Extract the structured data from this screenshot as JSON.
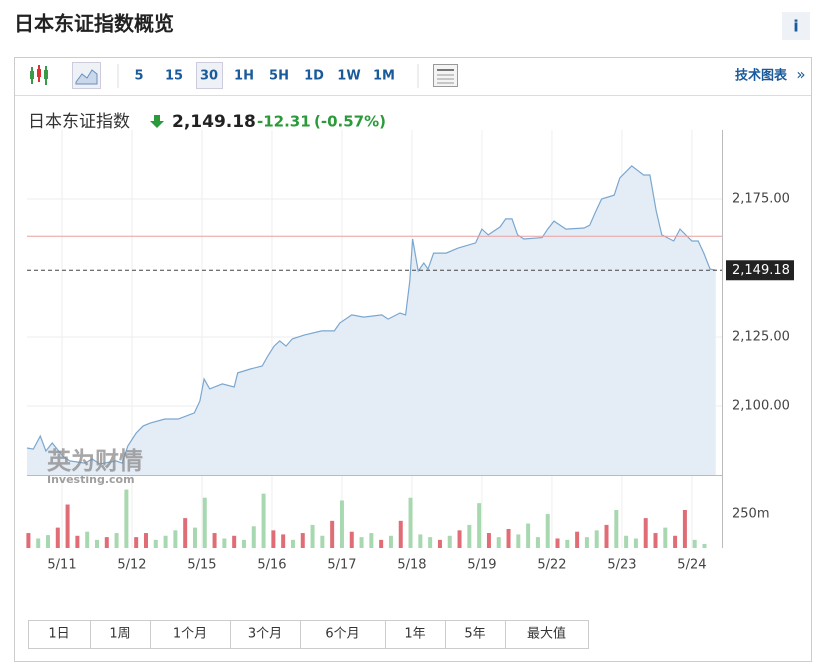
{
  "header": {
    "title": "日本东证指数概览",
    "info": "i"
  },
  "toolbar": {
    "intervals": [
      "5",
      "15",
      "30",
      "1H",
      "5H",
      "1D",
      "1W",
      "1M"
    ],
    "link": "技术图表",
    "link_arrow": "»"
  },
  "quote": {
    "name": "日本东证指数",
    "change": -12.31,
    "change_percent": "(-0.57%)"
  },
  "ranges": [
    "1日",
    "1周",
    "1个月",
    "3个月",
    "6个月",
    "1年",
    "5年",
    "最大值"
  ],
  "chart_data": [
    {
      "type": "area",
      "x": [
        -0.5,
        -0.41,
        -0.31,
        -0.23,
        -0.14,
        0.01,
        0.11,
        0.33,
        0.43,
        0.54,
        0.77,
        0.86,
        0.94,
        1.06,
        1.16,
        1.26,
        1.47,
        1.66,
        1.89,
        1.97,
        2.03,
        2.11,
        2.29,
        2.46,
        2.51,
        2.69,
        2.86,
        2.94,
        3.03,
        3.11,
        3.2,
        3.29,
        3.46,
        3.71,
        3.89,
        3.97,
        4.14,
        4.31,
        4.57,
        4.66,
        4.83,
        4.91,
        4.97,
        5.01,
        5.09,
        5.17,
        5.23,
        5.31,
        5.49,
        5.66,
        5.91,
        6.0,
        6.09,
        6.26,
        6.34,
        6.43,
        6.51,
        6.6,
        6.86,
        6.94,
        7.03,
        7.2,
        7.46,
        7.54,
        7.63,
        7.71,
        7.89,
        7.97,
        8.14,
        8.31,
        8.4,
        8.49,
        8.57,
        8.74,
        8.83,
        9.0,
        9.09,
        9.17,
        9.26,
        9.34
      ],
      "series": [
        {
          "color": "#7aa7d0",
          "values": [
            2084.8,
            2084.4,
            2089.1,
            2083.7,
            2086.6,
            2081.9,
            2080.1,
            2079.3,
            2080.8,
            2079.0,
            2080.1,
            2079.3,
            2085.5,
            2090.2,
            2092.8,
            2093.8,
            2095.3,
            2095.3,
            2097.5,
            2101.8,
            2109.8,
            2106.2,
            2108.0,
            2106.9,
            2112.0,
            2113.4,
            2114.5,
            2118.1,
            2121.7,
            2123.6,
            2121.7,
            2124.3,
            2125.7,
            2127.2,
            2127.2,
            2130.1,
            2133.0,
            2132.2,
            2133.0,
            2131.5,
            2133.7,
            2133.0,
            2145.3,
            2160.5,
            2148.9,
            2151.8,
            2149.6,
            2155.4,
            2155.4,
            2157.2,
            2159.1,
            2164.1,
            2162.0,
            2164.9,
            2167.8,
            2167.8,
            2162.0,
            2160.5,
            2161.0,
            2164.1,
            2167.0,
            2164.1,
            2164.5,
            2165.5,
            2170.7,
            2175.0,
            2176.4,
            2182.6,
            2187.0,
            2183.7,
            2183.7,
            2170.7,
            2162.0,
            2159.8,
            2164.1,
            2159.8,
            2159.8,
            2155.4,
            2149.6,
            2149.2
          ]
        }
      ],
      "xlim": [
        -0.5,
        9.43
      ],
      "ylim": [
        2075,
        2200
      ],
      "yticks": [
        {
          "value": 2100,
          "label": "2,100.00"
        },
        {
          "value": 2125,
          "label": "2,125.00"
        },
        {
          "value": 2175,
          "label": "2,175.00"
        }
      ],
      "xticks": [
        {
          "value": 0,
          "label": "5/11"
        },
        {
          "value": 1,
          "label": "5/12"
        },
        {
          "value": 2,
          "label": "5/15"
        },
        {
          "value": 3,
          "label": "5/16"
        },
        {
          "value": 4,
          "label": "5/17"
        },
        {
          "value": 5,
          "label": "5/18"
        },
        {
          "value": 6,
          "label": "5/19"
        },
        {
          "value": 7,
          "label": "5/22"
        },
        {
          "value": 8,
          "label": "5/23"
        },
        {
          "value": 9,
          "label": "5/24"
        }
      ],
      "last_price": {
        "value": 2149.18,
        "label": "2,149.18"
      },
      "prev_close": 2161.49,
      "prev_close_color": "#e8a0a0",
      "grid": true,
      "watermark": [
        "英为财情",
        "Investing.com"
      ]
    },
    {
      "type": "bar",
      "x": [
        -0.48,
        -0.34,
        -0.2,
        -0.06,
        0.08,
        0.22,
        0.36,
        0.5,
        0.64,
        0.78,
        0.92,
        1.06,
        1.2,
        1.34,
        1.48,
        1.62,
        1.76,
        1.9,
        2.04,
        2.18,
        2.32,
        2.46,
        2.6,
        2.74,
        2.88,
        3.02,
        3.16,
        3.3,
        3.44,
        3.58,
        3.72,
        3.86,
        4.0,
        4.14,
        4.28,
        4.42,
        4.56,
        4.7,
        4.84,
        4.98,
        5.12,
        5.26,
        5.4,
        5.54,
        5.68,
        5.82,
        5.96,
        6.1,
        6.24,
        6.38,
        6.52,
        6.66,
        6.8,
        6.94,
        7.08,
        7.22,
        7.36,
        7.5,
        7.64,
        7.78,
        7.92,
        8.06,
        8.2,
        8.34,
        8.48,
        8.62,
        8.76,
        8.9,
        9.04,
        9.18
      ],
      "values": [
        110,
        70,
        95,
        150,
        320,
        90,
        120,
        60,
        80,
        110,
        430,
        80,
        110,
        60,
        90,
        130,
        220,
        150,
        370,
        110,
        70,
        90,
        60,
        160,
        400,
        130,
        100,
        60,
        110,
        170,
        90,
        200,
        350,
        120,
        80,
        110,
        60,
        90,
        200,
        370,
        100,
        80,
        60,
        90,
        130,
        170,
        330,
        110,
        80,
        140,
        100,
        180,
        80,
        250,
        70,
        60,
        120,
        80,
        130,
        170,
        280,
        90,
        70,
        220,
        110,
        150,
        90,
        280,
        60,
        30
      ],
      "colors": [
        "#e06c75",
        "#a8d8b0",
        "#a8d8b0",
        "#e06c75",
        "#e06c75",
        "#e06c75",
        "#a8d8b0",
        "#a8d8b0",
        "#e06c75",
        "#a8d8b0",
        "#a8d8b0",
        "#e06c75",
        "#e06c75",
        "#a8d8b0",
        "#a8d8b0",
        "#a8d8b0",
        "#e06c75",
        "#a8d8b0",
        "#a8d8b0",
        "#e06c75",
        "#a8d8b0",
        "#e06c75",
        "#a8d8b0",
        "#a8d8b0",
        "#a8d8b0",
        "#e06c75",
        "#e06c75",
        "#a8d8b0",
        "#e06c75",
        "#a8d8b0",
        "#a8d8b0",
        "#e06c75",
        "#a8d8b0",
        "#e06c75",
        "#a8d8b0",
        "#a8d8b0",
        "#e06c75",
        "#a8d8b0",
        "#e06c75",
        "#a8d8b0",
        "#a8d8b0",
        "#a8d8b0",
        "#e06c75",
        "#a8d8b0",
        "#e06c75",
        "#a8d8b0",
        "#a8d8b0",
        "#e06c75",
        "#a8d8b0",
        "#e06c75",
        "#a8d8b0",
        "#a8d8b0",
        "#a8d8b0",
        "#a8d8b0",
        "#e06c75",
        "#a8d8b0",
        "#e06c75",
        "#a8d8b0",
        "#a8d8b0",
        "#e06c75",
        "#a8d8b0",
        "#a8d8b0",
        "#a8d8b0",
        "#e06c75",
        "#e06c75",
        "#a8d8b0",
        "#e06c75",
        "#e06c75",
        "#a8d8b0",
        "#a8d8b0"
      ],
      "xlim": [
        -0.5,
        9.43
      ],
      "ylim": [
        0,
        530
      ],
      "yticks": [
        {
          "value": 250,
          "label": "250m"
        }
      ]
    }
  ]
}
